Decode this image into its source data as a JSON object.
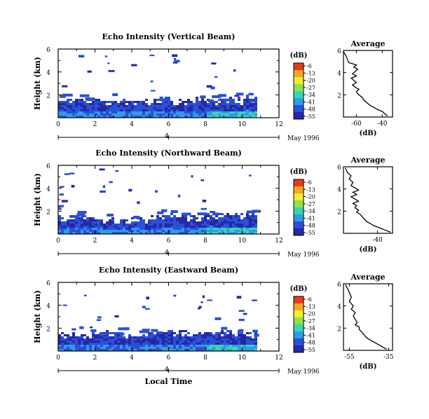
{
  "colorbar": {
    "unit": "(dB)",
    "ticks": [
      "-6",
      "-13",
      "-20",
      "-27",
      "-34",
      "-41",
      "-48",
      "-55"
    ],
    "colors": [
      "#e83a1a",
      "#f6a623",
      "#f3ee2c",
      "#8fe24a",
      "#36d6b0",
      "#2c9de6",
      "#2b4fd8",
      "#2428a6"
    ]
  },
  "date_label": "May 1996",
  "xlabel": "Local Time",
  "chart_data": [
    {
      "type": "heatmap",
      "title": "Echo Intensity (Vertical Beam)",
      "ylabel": "Height (km)",
      "xlim": [
        0,
        12
      ],
      "ylim": [
        0,
        6
      ],
      "xticks": [
        "0",
        "2",
        "4",
        "6",
        "8",
        "10",
        "12"
      ],
      "yticks": [
        "2",
        "4",
        "6"
      ],
      "date_marker": "4",
      "data_end_hour": 10.8,
      "layer_top_km": [
        1.5,
        1.6,
        1.5,
        1.4,
        1.5,
        1.6,
        1.5,
        1.7,
        1.5,
        1.6,
        1.7,
        1.6
      ]
    },
    {
      "type": "heatmap",
      "title": "Echo Intensity (Northward Beam)",
      "ylabel": "Height (km)",
      "xlim": [
        0,
        12
      ],
      "ylim": [
        0,
        6
      ],
      "xticks": [
        "0",
        "2",
        "4",
        "6",
        "8",
        "10",
        "12"
      ],
      "yticks": [
        "2",
        "4",
        "6"
      ],
      "date_marker": "4",
      "data_end_hour": 10.8,
      "layer_top_km": [
        1.4,
        1.5,
        1.3,
        1.2,
        1.3,
        1.5,
        1.6,
        1.5,
        1.8,
        1.6,
        1.7,
        1.5
      ]
    },
    {
      "type": "heatmap",
      "title": "Echo Intensity (Eastward Beam)",
      "ylabel": "Height (km)",
      "xlim": [
        0,
        12
      ],
      "ylim": [
        0,
        6
      ],
      "xticks": [
        "0",
        "2",
        "4",
        "6",
        "8",
        "10",
        "12"
      ],
      "yticks": [
        "2",
        "4",
        "6"
      ],
      "date_marker": "4",
      "data_end_hour": 10.8,
      "layer_top_km": [
        1.5,
        1.4,
        1.6,
        1.5,
        1.5,
        1.6,
        1.7,
        1.5,
        1.6,
        1.6,
        1.5,
        1.4
      ]
    },
    {
      "type": "line",
      "title": "Average",
      "xlabel": "(dB)",
      "xticks": [
        "-60",
        "-40"
      ],
      "xlim": [
        -70,
        -32
      ],
      "ylim": [
        0,
        6
      ],
      "yticks": [
        "2",
        "4",
        "6"
      ],
      "x": [
        -36,
        -38,
        -40,
        -44,
        -47,
        -50,
        -52,
        -54,
        -55,
        -57,
        -59,
        -60,
        -58,
        -61,
        -63,
        -60,
        -62,
        -64,
        -60,
        -63,
        -61,
        -59,
        -62,
        -60,
        -66,
        -67,
        -68,
        -70
      ],
      "y": [
        0.1,
        0.3,
        0.5,
        0.7,
        0.9,
        1.1,
        1.3,
        1.5,
        1.7,
        1.9,
        2.1,
        2.3,
        2.5,
        2.7,
        2.9,
        3.1,
        3.3,
        3.5,
        3.7,
        3.9,
        4.1,
        4.3,
        4.5,
        4.7,
        4.9,
        5.2,
        5.5,
        5.9
      ]
    },
    {
      "type": "line",
      "title": "Average",
      "xlabel": "(dB)",
      "xticks": [
        "-40"
      ],
      "xlim": [
        -58,
        -32
      ],
      "ylim": [
        0,
        6
      ],
      "yticks": [
        "2",
        "4",
        "6"
      ],
      "x": [
        -33,
        -36,
        -39,
        -42,
        -44,
        -46,
        -47,
        -48,
        -49,
        -51,
        -50,
        -52,
        -51,
        -53,
        -50,
        -52,
        -54,
        -51,
        -53,
        -50,
        -52,
        -54,
        -53,
        -55,
        -54,
        -56,
        -57
      ],
      "y": [
        0.1,
        0.3,
        0.5,
        0.7,
        0.9,
        1.1,
        1.3,
        1.5,
        1.7,
        1.9,
        2.1,
        2.3,
        2.5,
        2.7,
        2.9,
        3.1,
        3.3,
        3.5,
        3.7,
        3.9,
        4.1,
        4.3,
        4.6,
        4.9,
        5.2,
        5.5,
        5.9
      ]
    },
    {
      "type": "line",
      "title": "Average",
      "xlabel": "(dB)",
      "xticks": [
        "-55",
        "-35"
      ],
      "xlim": [
        -58,
        -33
      ],
      "ylim": [
        0,
        6
      ],
      "yticks": [
        "2",
        "4",
        "6"
      ],
      "x": [
        -36,
        -38,
        -40,
        -42,
        -44,
        -46,
        -47,
        -48,
        -49,
        -50,
        -50,
        -52,
        -51,
        -52,
        -53,
        -52,
        -54,
        -53,
        -55,
        -54,
        -55,
        -56,
        -57
      ],
      "y": [
        0.1,
        0.3,
        0.5,
        0.7,
        0.9,
        1.1,
        1.3,
        1.5,
        1.7,
        1.9,
        2.1,
        2.3,
        2.5,
        2.8,
        3.1,
        3.4,
        3.7,
        4.0,
        4.4,
        4.8,
        5.2,
        5.6,
        5.9
      ]
    }
  ]
}
